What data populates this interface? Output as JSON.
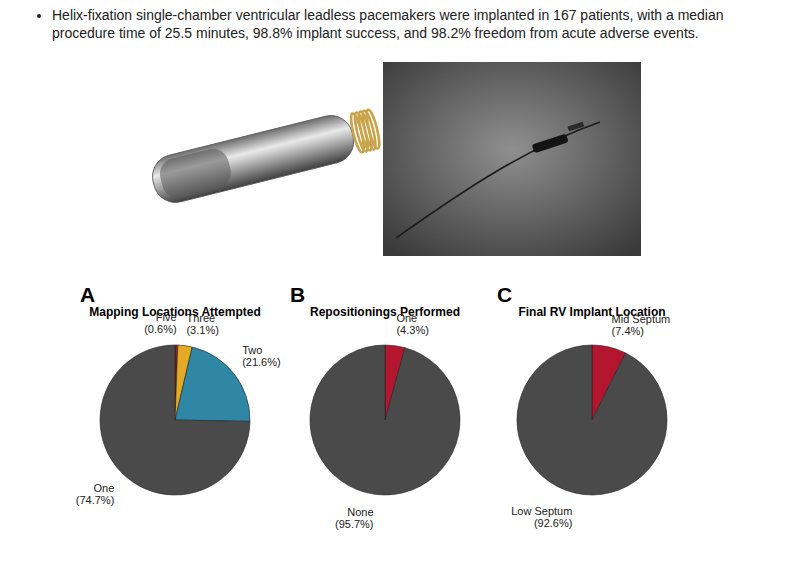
{
  "header": {
    "bullet": "Helix-fixation single-chamber ventricular leadless pacemakers were implanted in 167 patients, with a median procedure time of 25.5 minutes, 98.8% implant success, and 98.2% freedom from acute adverse events."
  },
  "chart_data": [
    {
      "type": "pie",
      "panel": "A",
      "title": "Mapping Locations Attempted",
      "categories": [
        "Five",
        "Three",
        "Two",
        "One"
      ],
      "values": [
        0.6,
        3.1,
        21.6,
        74.7
      ],
      "value_labels": [
        "(0.6%)",
        "(3.1%)",
        "(21.6%)",
        "(74.7%)"
      ],
      "colors": [
        "#8e1b25",
        "#e3aa22",
        "#2f86a5",
        "#4a4a4a"
      ]
    },
    {
      "type": "pie",
      "panel": "B",
      "title": "Repositionings Performed",
      "categories": [
        "One",
        "None"
      ],
      "values": [
        4.3,
        95.7
      ],
      "value_labels": [
        "(4.3%)",
        "(95.7%)"
      ],
      "colors": [
        "#b3162e",
        "#4a4a4a"
      ]
    },
    {
      "type": "pie",
      "panel": "C",
      "title": "Final RV Implant Location",
      "categories": [
        "Mid Septum",
        "Low Septum"
      ],
      "values": [
        7.4,
        92.6
      ],
      "value_labels": [
        "(7.4%)",
        "(92.6%)"
      ],
      "colors": [
        "#b3162e",
        "#4a4a4a"
      ]
    }
  ]
}
